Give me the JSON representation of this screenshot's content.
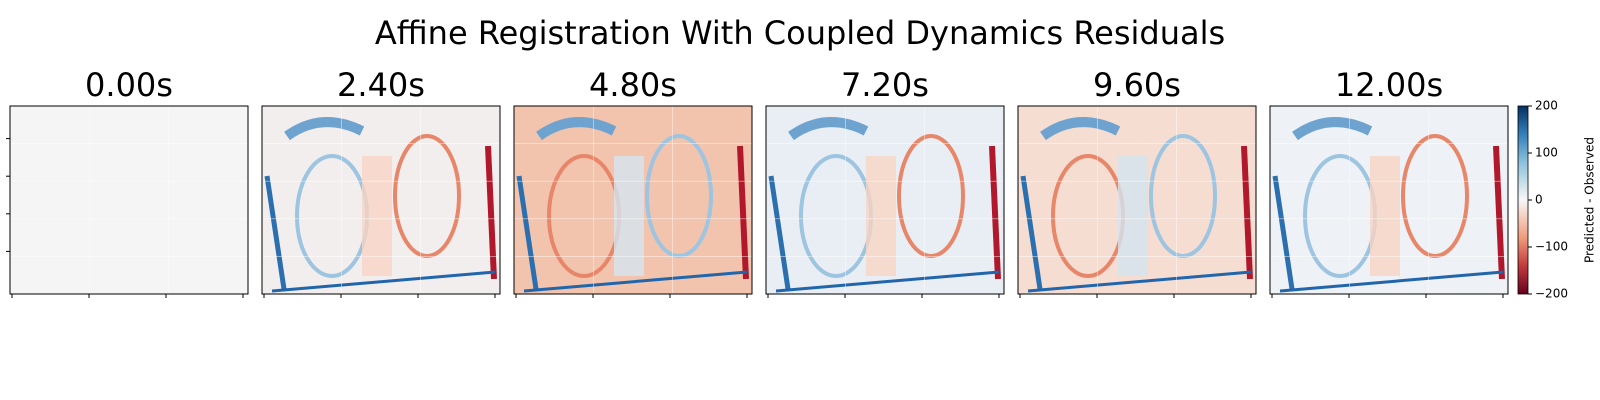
{
  "chart_data": {
    "type": "image-grid",
    "title": "Affine Registration With Coupled Dynamics Residuals",
    "panels": [
      {
        "title": "0.00s"
      },
      {
        "title": "2.40s"
      },
      {
        "title": "4.80s"
      },
      {
        "title": "7.20s"
      },
      {
        "title": "9.60s"
      },
      {
        "title": "12.00s"
      }
    ],
    "colorbar": {
      "label": "Predicted - Observed",
      "cmap": "RdBu",
      "lim": [
        -200,
        200
      ],
      "ticks": [
        200,
        100,
        0,
        {
          "value": -100,
          "label": "−100"
        },
        {
          "value": -200,
          "label": "−200"
        }
      ]
    }
  }
}
